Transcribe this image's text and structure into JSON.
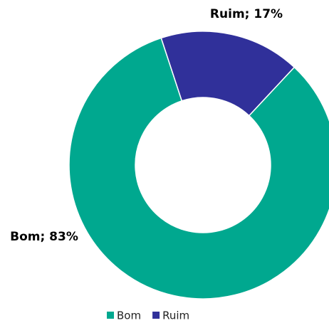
{
  "chart_data": {
    "type": "donut",
    "categories": [
      "Bom",
      "Ruim"
    ],
    "values": [
      83,
      17
    ],
    "value_labels": [
      "Bom; 83%",
      "Ruim; 17%"
    ],
    "colors": [
      "#00a88f",
      "#30309a"
    ],
    "legend": "bottom"
  }
}
